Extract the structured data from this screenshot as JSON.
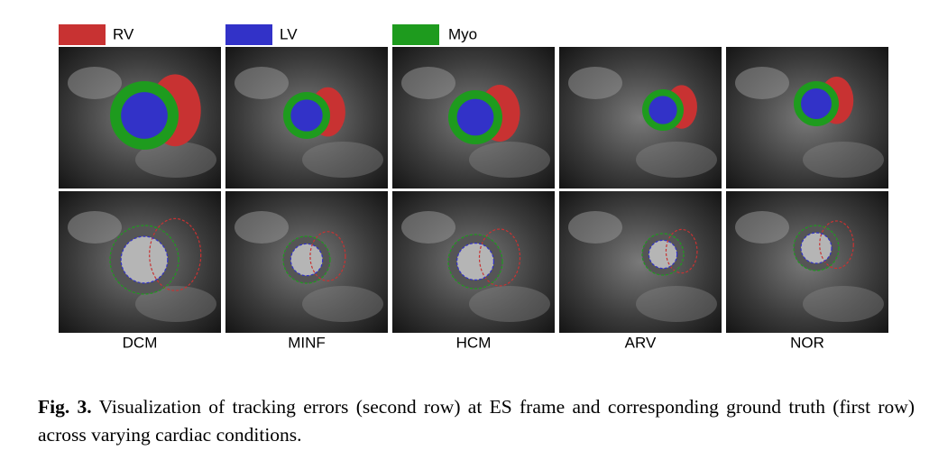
{
  "legend": [
    {
      "label": "RV",
      "color": "#c83232"
    },
    {
      "label": "LV",
      "color": "#3232c8"
    },
    {
      "label": "Myo",
      "color": "#1e9b1e"
    }
  ],
  "columns": [
    "DCM",
    "MINF",
    "HCM",
    "ARV",
    "NOR"
  ],
  "caption": {
    "label": "Fig. 3.",
    "text": "Visualization of tracking errors (second row) at ES frame and corresponding ground truth (first row) across varying cardiac conditions."
  }
}
